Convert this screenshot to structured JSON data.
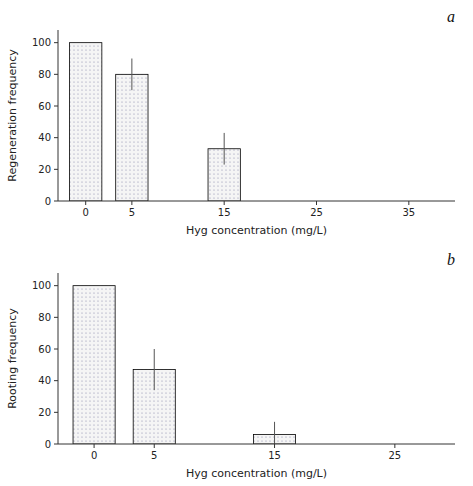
{
  "chart_data": [
    {
      "type": "bar",
      "title": "a",
      "x": [
        0,
        5,
        15
      ],
      "values": [
        100,
        80,
        33
      ],
      "errors": [
        0,
        10,
        10
      ],
      "xlabel": "Hyg concentration (mg/L)",
      "ylabel": "Regeneration frequency",
      "xlim": [
        -3,
        40
      ],
      "ylim": [
        0,
        108
      ],
      "xticks": [
        0,
        5,
        15,
        25,
        35
      ],
      "yticks": [
        0,
        20,
        40,
        60,
        80,
        100
      ],
      "color": "#f5f5f5"
    },
    {
      "type": "bar",
      "title": "b",
      "x": [
        0,
        5,
        15
      ],
      "values": [
        100,
        47,
        6
      ],
      "errors": [
        0,
        13,
        8
      ],
      "xlabel": "Hyg concentration (mg/L)",
      "ylabel": "Rooting frequency",
      "xlim": [
        -3,
        30
      ],
      "ylim": [
        0,
        108
      ],
      "xticks": [
        0,
        5,
        15,
        25
      ],
      "yticks": [
        0,
        20,
        40,
        60,
        80,
        100
      ],
      "color": "#f5f5f5"
    }
  ]
}
